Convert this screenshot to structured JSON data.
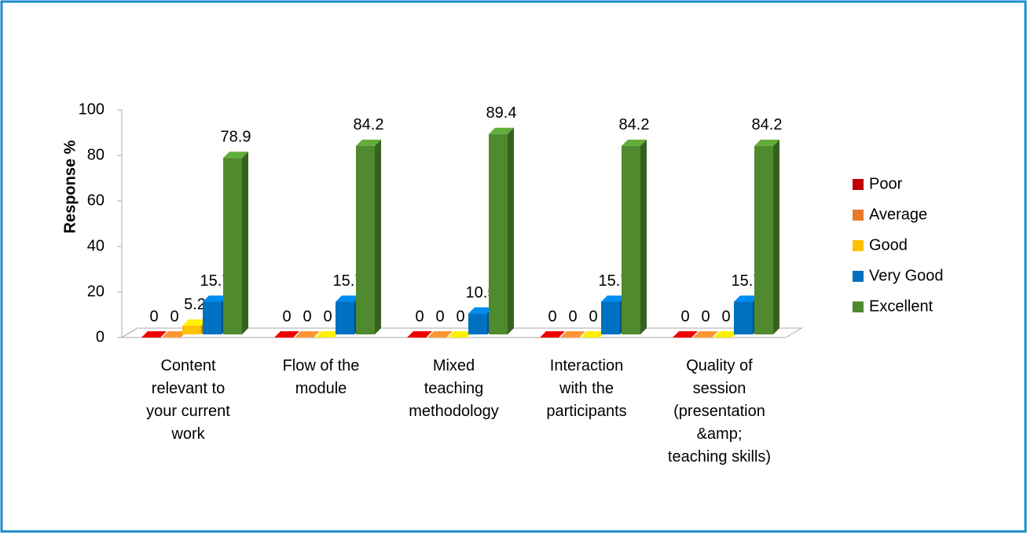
{
  "chart_data": {
    "type": "bar3d",
    "ylabel": "Response %",
    "categories": [
      "Content relevant to your current work",
      "Flow of the module",
      "Mixed teaching methodology",
      "Interaction with the participants",
      "Quality of session (presentation &amp; teaching skills)"
    ],
    "series": [
      {
        "name": "Poor",
        "color": "#c00000",
        "values": [
          0,
          0,
          0,
          0,
          0
        ]
      },
      {
        "name": "Average",
        "color": "#e8782a",
        "values": [
          0,
          0,
          0,
          0,
          0
        ]
      },
      {
        "name": "Good",
        "color": "#ffc000",
        "values": [
          5.2,
          0,
          0,
          0,
          0
        ]
      },
      {
        "name": "Very Good",
        "color": "#0070c0",
        "values": [
          15.7,
          15.7,
          10.5,
          15.7,
          15.7
        ]
      },
      {
        "name": "Excellent",
        "color": "#4f8a2e",
        "values": [
          78.9,
          84.2,
          89.4,
          84.2,
          84.2
        ]
      }
    ],
    "ylim": [
      0,
      100
    ],
    "yticks": [
      0,
      20,
      40,
      60,
      80,
      100
    ],
    "legend": "right"
  }
}
